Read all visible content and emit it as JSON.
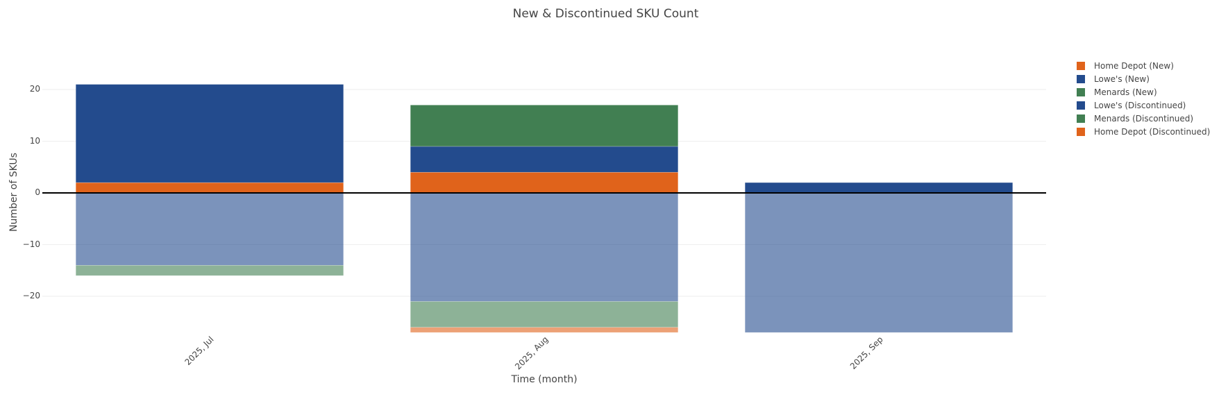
{
  "title": "New & Discontinued SKU Count",
  "axes": {
    "xlabel": "Time (month)",
    "ylabel": "Number of SKUs",
    "yticks": [
      "20",
      "10",
      "0",
      "−10",
      "−20"
    ],
    "xticks": [
      "2025, Jul",
      "2025, Aug",
      "2025, Sep"
    ]
  },
  "legend": [
    {
      "label": "Home Depot (New)",
      "color": "#E0631B"
    },
    {
      "label": "Lowe's (New)",
      "color": "#234B8D"
    },
    {
      "label": "Menards (New)",
      "color": "#417F52"
    },
    {
      "label": "Lowe's (Discontinued)",
      "color": "#234B8D"
    },
    {
      "label": "Menards (Discontinued)",
      "color": "#417F52"
    },
    {
      "label": "Home Depot (Discontinued)",
      "color": "#E0631B"
    }
  ],
  "chart_data": {
    "type": "bar",
    "barmode": "relative (stacked)",
    "title": "New & Discontinued SKU Count",
    "xlabel": "Time (month)",
    "ylabel": "Number of SKUs",
    "categories": [
      "2025, Jul",
      "2025, Aug",
      "2025, Sep"
    ],
    "ylim": [
      -27,
      23
    ],
    "yticks": [
      -20,
      -10,
      0,
      10,
      20
    ],
    "grid": true,
    "legend_position": "right",
    "series": [
      {
        "name": "Home Depot (New)",
        "color": "#E0631B",
        "opacity": 1.0,
        "values": [
          2,
          4,
          0
        ]
      },
      {
        "name": "Lowe's (New)",
        "color": "#234B8D",
        "opacity": 1.0,
        "values": [
          19,
          5,
          2
        ]
      },
      {
        "name": "Menards (New)",
        "color": "#417F52",
        "opacity": 1.0,
        "values": [
          0,
          8,
          0
        ]
      },
      {
        "name": "Lowe's (Discontinued)",
        "color": "#234B8D",
        "opacity": 0.6,
        "values": [
          -14,
          -21,
          -27
        ]
      },
      {
        "name": "Menards (Discontinued)",
        "color": "#417F52",
        "opacity": 0.6,
        "values": [
          -2,
          -5,
          0
        ]
      },
      {
        "name": "Home Depot (Discontinued)",
        "color": "#E0631B",
        "opacity": 0.6,
        "values": [
          0,
          -1,
          0
        ]
      }
    ]
  }
}
